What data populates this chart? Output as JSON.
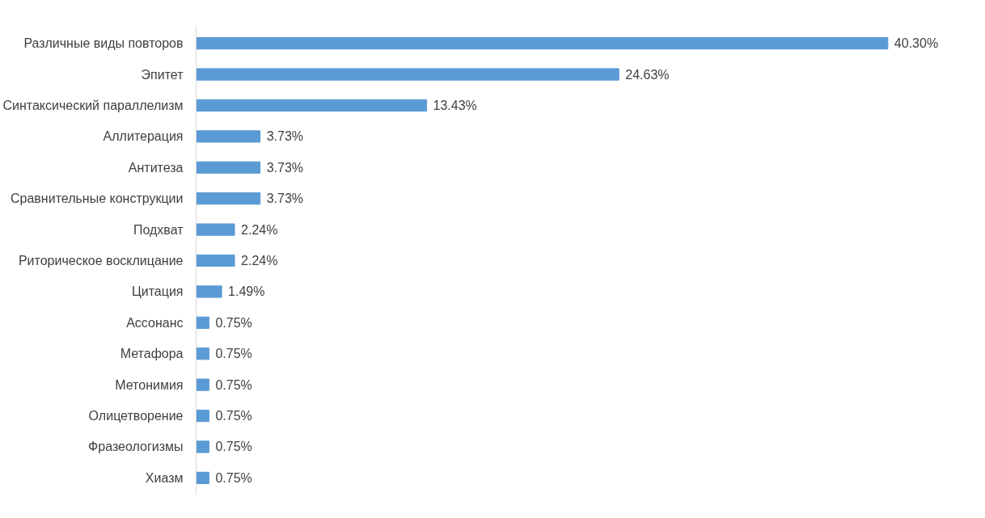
{
  "chart_data": {
    "type": "bar",
    "orientation": "horizontal",
    "color": "#5b9bd5",
    "data_labels": true,
    "grid": false,
    "categories": [
      "Различные виды повторов",
      "Эпитет",
      "Синтаксический параллелизм",
      "Аллитерация",
      "Антитеза",
      "Сравнительные конструкции",
      "Подхват",
      "Риторическое восклицание",
      "Цитация",
      "Ассонанс",
      "Метафора",
      "Метонимия",
      "Олицетворение",
      "Фразеологизмы",
      "Хиазм"
    ],
    "values": [
      40.3,
      24.63,
      13.43,
      3.73,
      3.73,
      3.73,
      2.24,
      2.24,
      1.49,
      0.75,
      0.75,
      0.75,
      0.75,
      0.75,
      0.75
    ],
    "value_labels": [
      "40.30%",
      "24.63%",
      "13.43%",
      "3.73%",
      "3.73%",
      "3.73%",
      "2.24%",
      "2.24%",
      "1.49%",
      "0.75%",
      "0.75%",
      "0.75%",
      "0.75%",
      "0.75%",
      "0.75%"
    ]
  }
}
